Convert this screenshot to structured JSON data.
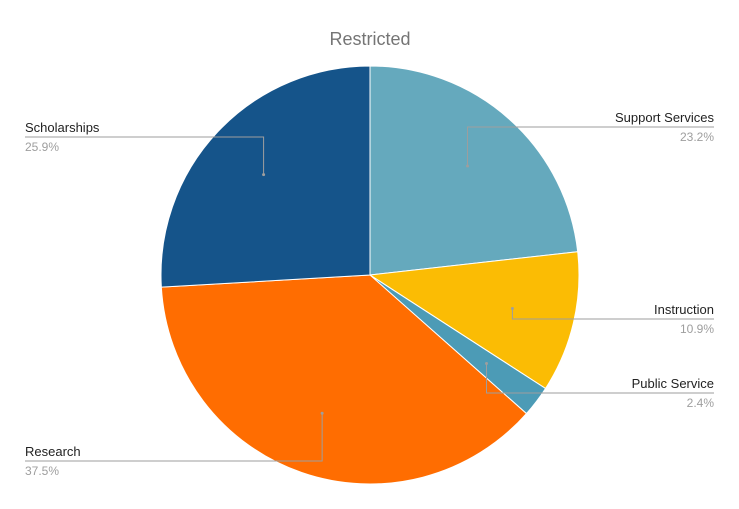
{
  "chart_data": {
    "type": "pie",
    "title": "Restricted",
    "slices": [
      {
        "label": "Support Services",
        "percent_label": "23.2%",
        "value": 23.2,
        "color": "#65a9bd",
        "side": "right"
      },
      {
        "label": "Instruction",
        "percent_label": "10.9%",
        "value": 10.9,
        "color": "#fbbc04",
        "side": "right"
      },
      {
        "label": "Public Service",
        "percent_label": "2.4%",
        "value": 2.4,
        "color": "#4c9bb6",
        "side": "right"
      },
      {
        "label": "Research",
        "percent_label": "37.5%",
        "value": 37.5,
        "color": "#ff6d01",
        "side": "left"
      },
      {
        "label": "Scholarships",
        "percent_label": "25.9%",
        "value": 25.9,
        "color": "#15548a",
        "side": "left"
      }
    ],
    "start_angle_deg": 0,
    "direction": "clockwise",
    "legend": "labels"
  }
}
